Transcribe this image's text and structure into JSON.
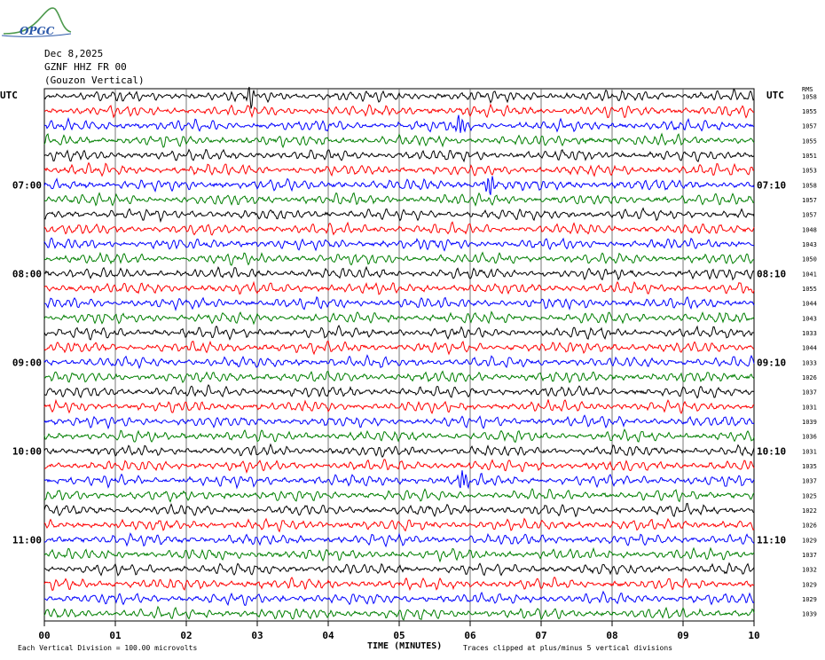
{
  "logo": {
    "text": "OPGC",
    "color": "#2a57a8"
  },
  "header": {
    "date": "Dec 8,2025",
    "station": "GZNF HHZ FR 00",
    "name": "(Gouzon Vertical)"
  },
  "utc_left": "UTC",
  "utc_right": "UTC",
  "rms_header": "RMS",
  "x_title": "TIME (MINUTES)",
  "footer": {
    "left": "Each Vertical Division =  100.00 microvolts",
    "right": "Traces clipped at plus/minus 5 vertical divisions"
  },
  "chart_data": {
    "type": "line",
    "title": "",
    "xlabel": "TIME (MINUTES)",
    "ylabel": "",
    "xlim": [
      0,
      10
    ],
    "x_ticks": [
      "00",
      "01",
      "02",
      "03",
      "04",
      "05",
      "06",
      "07",
      "08",
      "09",
      "10"
    ],
    "grid": true,
    "trace_colors": [
      "#000000",
      "#ff0000",
      "#0000ff",
      "#007f00"
    ],
    "left_time_labels": [
      {
        "row": 6,
        "label": "07:00"
      },
      {
        "row": 12,
        "label": "08:00"
      },
      {
        "row": 18,
        "label": "09:00"
      },
      {
        "row": 24,
        "label": "10:00"
      },
      {
        "row": 30,
        "label": "11:00"
      }
    ],
    "right_time_labels": [
      {
        "row": 6,
        "label": "07:10"
      },
      {
        "row": 12,
        "label": "08:10"
      },
      {
        "row": 18,
        "label": "09:10"
      },
      {
        "row": 24,
        "label": "10:10"
      },
      {
        "row": 30,
        "label": "11:10"
      }
    ],
    "rms_values": [
      "1058",
      "1055",
      "1057",
      "1055",
      "1051",
      "1053",
      "1058",
      "1057",
      "1057",
      "1048",
      "1043",
      "1050",
      "1041",
      "1055",
      "1044",
      "1043",
      "1033",
      "1044",
      "1033",
      "1026",
      "1037",
      "1031",
      "1039",
      "1036",
      "1031",
      "1035",
      "1037",
      "1025",
      "1022",
      "1026",
      "1029",
      "1037",
      "1032",
      "1029",
      "1029",
      "1039"
    ],
    "annotations": [
      {
        "row": 0,
        "minute": 2.9,
        "label": "spike"
      },
      {
        "row": 2,
        "minute": 5.85,
        "label": "spike"
      },
      {
        "row": 6,
        "minute": 6.27,
        "label": "spike"
      },
      {
        "row": 26,
        "minute": 5.9,
        "label": "spike"
      }
    ]
  }
}
